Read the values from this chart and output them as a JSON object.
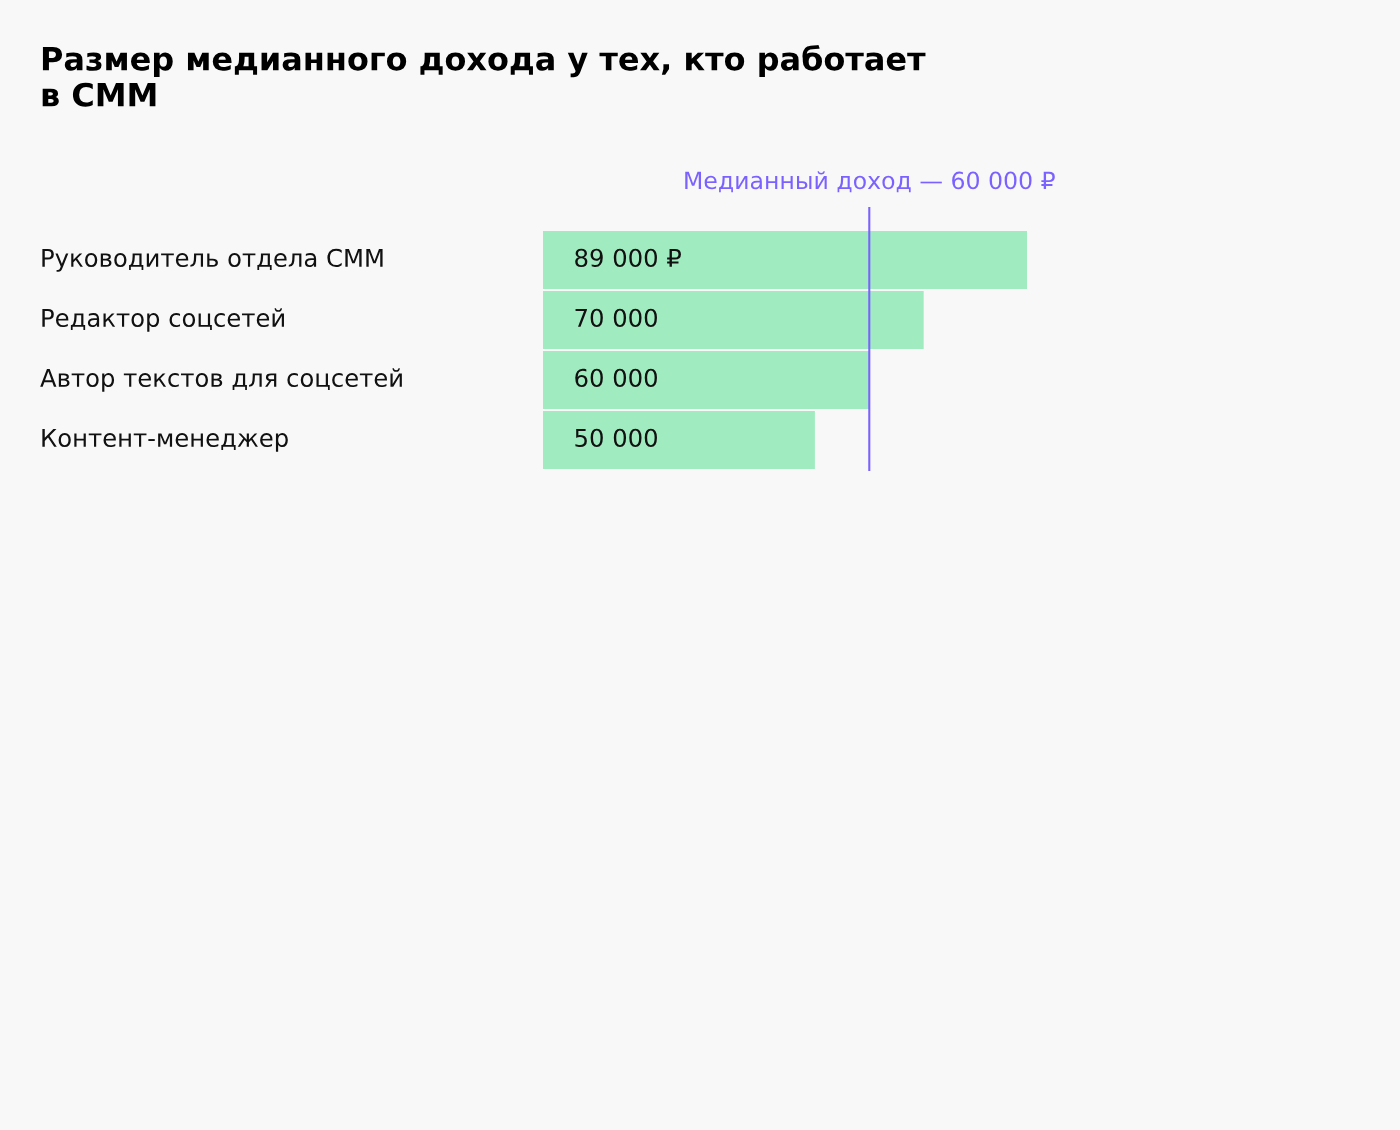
{
  "chart_data": {
    "type": "bar",
    "orientation": "horizontal",
    "title": "Размер медианного дохода у тех, кто работает\nв СММ",
    "categories": [
      "Руководитель отдела СММ",
      "Редактор соцсетей",
      "Автор текстов для соцсетей",
      "Контент-менеджер"
    ],
    "values": [
      89000,
      70000,
      60000,
      50000
    ],
    "value_labels": [
      "89 000 ₽",
      "70 000",
      "60 000",
      "50 000"
    ],
    "color": "#a0ecc0",
    "ref_lines": [
      {
        "axis": "x",
        "value": 60000,
        "label": "Медианный доход — 60 000 ₽",
        "color": "#7b61ff",
        "line_style": "solid"
      }
    ]
  }
}
